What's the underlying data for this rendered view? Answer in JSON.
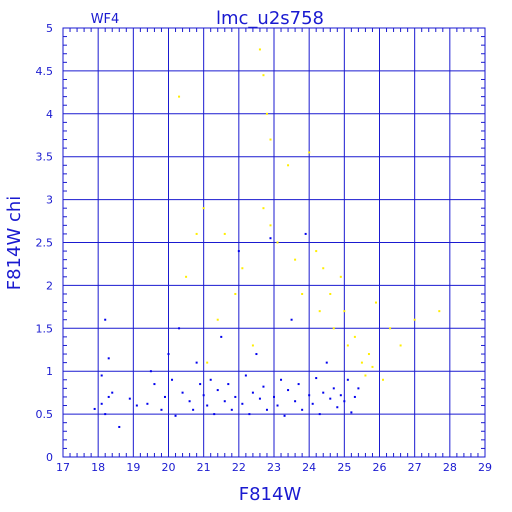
{
  "chart_data": {
    "type": "scatter",
    "title": "lmc_u2s758",
    "subtitle": "WF4",
    "xlabel": "F814W",
    "ylabel": "F814W chi",
    "xlim": [
      17,
      29
    ],
    "ylim": [
      0,
      5
    ],
    "x_ticks": [
      "17",
      "18",
      "19",
      "20",
      "21",
      "22",
      "23",
      "24",
      "25",
      "26",
      "27",
      "28",
      "29"
    ],
    "y_ticks": [
      "0",
      "0.5",
      "1",
      "1.5",
      "2",
      "2.5",
      "3",
      "3.5",
      "4",
      "4.5",
      "5"
    ],
    "grid": true,
    "colors": {
      "axis": "#1a1ad0",
      "primary_points": "#0000ee",
      "secondary_points": "#ffee00"
    },
    "series": [
      {
        "points": [
          [
            17.9,
            0.56
          ],
          [
            18.1,
            0.95
          ],
          [
            18.2,
            1.6
          ],
          [
            18.1,
            0.62
          ],
          [
            18.3,
            0.7
          ],
          [
            18.2,
            0.5
          ],
          [
            18.4,
            0.75
          ],
          [
            18.6,
            0.35
          ],
          [
            18.3,
            1.15
          ],
          [
            18.9,
            0.68
          ],
          [
            19.1,
            0.6
          ],
          [
            19.4,
            0.62
          ],
          [
            19.5,
            1.0
          ],
          [
            19.6,
            0.85
          ],
          [
            19.8,
            0.55
          ],
          [
            19.9,
            0.7
          ],
          [
            20.0,
            1.2
          ],
          [
            20.1,
            0.9
          ],
          [
            20.2,
            0.48
          ],
          [
            20.3,
            1.5
          ],
          [
            20.4,
            0.75
          ],
          [
            20.6,
            0.65
          ],
          [
            20.7,
            0.55
          ],
          [
            20.8,
            1.1
          ],
          [
            20.9,
            0.85
          ],
          [
            21.0,
            0.72
          ],
          [
            21.1,
            0.6
          ],
          [
            21.2,
            0.9
          ],
          [
            21.3,
            0.5
          ],
          [
            21.4,
            0.78
          ],
          [
            21.5,
            1.4
          ],
          [
            21.6,
            0.65
          ],
          [
            21.7,
            0.85
          ],
          [
            21.8,
            0.55
          ],
          [
            21.9,
            0.7
          ],
          [
            22.0,
            2.4
          ],
          [
            22.1,
            0.62
          ],
          [
            22.2,
            0.95
          ],
          [
            22.3,
            0.5
          ],
          [
            22.4,
            0.75
          ],
          [
            22.5,
            1.2
          ],
          [
            22.6,
            0.68
          ],
          [
            22.7,
            0.82
          ],
          [
            22.8,
            0.55
          ],
          [
            22.9,
            2.55
          ],
          [
            23.0,
            0.7
          ],
          [
            23.1,
            0.6
          ],
          [
            23.2,
            0.9
          ],
          [
            23.3,
            0.48
          ],
          [
            23.4,
            0.78
          ],
          [
            23.5,
            1.6
          ],
          [
            23.6,
            0.65
          ],
          [
            23.7,
            0.85
          ],
          [
            23.8,
            0.55
          ],
          [
            23.9,
            2.6
          ],
          [
            24.0,
            0.72
          ],
          [
            24.1,
            0.62
          ],
          [
            24.2,
            0.92
          ],
          [
            24.3,
            0.5
          ],
          [
            24.4,
            0.75
          ],
          [
            24.5,
            1.1
          ],
          [
            24.6,
            0.68
          ],
          [
            24.7,
            0.8
          ],
          [
            24.8,
            0.58
          ],
          [
            24.9,
            0.72
          ],
          [
            25.0,
            0.65
          ],
          [
            25.1,
            0.9
          ],
          [
            25.2,
            0.52
          ],
          [
            25.3,
            0.7
          ],
          [
            25.4,
            0.8
          ]
        ]
      },
      {
        "points": [
          [
            20.3,
            4.2
          ],
          [
            20.5,
            2.1
          ],
          [
            20.8,
            2.6
          ],
          [
            21.0,
            2.9
          ],
          [
            21.1,
            1.1
          ],
          [
            21.4,
            1.6
          ],
          [
            21.6,
            2.6
          ],
          [
            21.9,
            1.9
          ],
          [
            22.1,
            2.2
          ],
          [
            22.4,
            1.3
          ],
          [
            22.6,
            4.75
          ],
          [
            22.7,
            4.45
          ],
          [
            22.8,
            4.0
          ],
          [
            22.9,
            3.7
          ],
          [
            22.7,
            2.9
          ],
          [
            22.9,
            2.7
          ],
          [
            23.1,
            2.5
          ],
          [
            23.4,
            3.4
          ],
          [
            23.6,
            2.3
          ],
          [
            23.8,
            1.9
          ],
          [
            24.0,
            3.55
          ],
          [
            24.2,
            2.4
          ],
          [
            24.3,
            1.7
          ],
          [
            24.4,
            2.2
          ],
          [
            24.6,
            1.9
          ],
          [
            24.7,
            1.5
          ],
          [
            24.9,
            2.1
          ],
          [
            25.0,
            1.7
          ],
          [
            25.1,
            1.3
          ],
          [
            25.3,
            1.4
          ],
          [
            25.5,
            1.1
          ],
          [
            25.7,
            1.2
          ],
          [
            25.9,
            1.8
          ],
          [
            26.3,
            1.5
          ],
          [
            26.6,
            1.3
          ],
          [
            27.0,
            1.6
          ],
          [
            27.7,
            1.7
          ],
          [
            25.6,
            0.95
          ],
          [
            25.8,
            1.05
          ],
          [
            26.1,
            0.9
          ]
        ]
      }
    ]
  }
}
